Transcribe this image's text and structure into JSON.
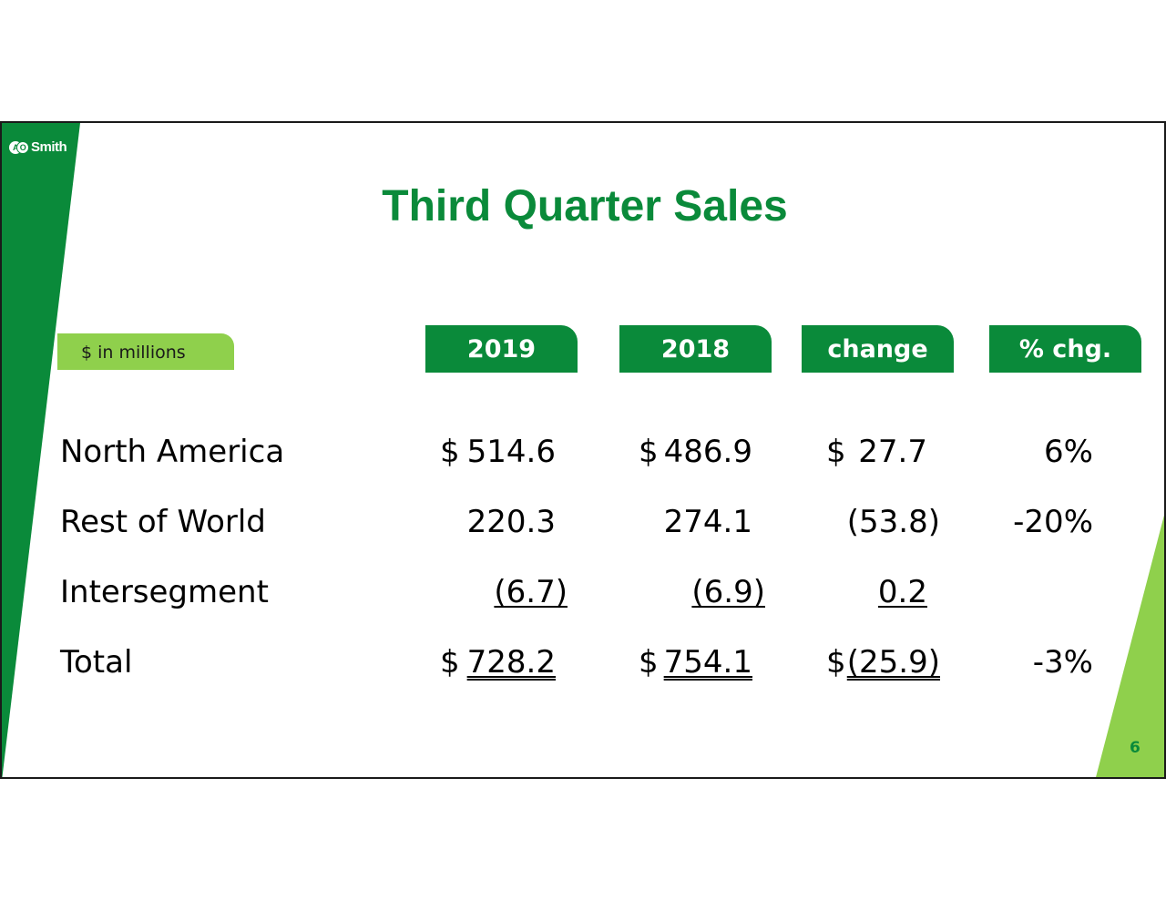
{
  "slide": {
    "logo_text": "Smith",
    "logo_mark": [
      "A",
      "O"
    ],
    "title": "Third Quarter Sales",
    "units_label": "$ in millions",
    "page_number": "6"
  },
  "columns": [
    "2019",
    "2018",
    "change",
    "% chg."
  ],
  "rows": [
    {
      "label": "North America",
      "cur_2019": "$",
      "v2019": "514.6",
      "cur_2018": "$",
      "v2018": "486.9",
      "cur_change": "$",
      "change": "27.7",
      "pct": "6%"
    },
    {
      "label": "Rest of World",
      "cur_2019": "",
      "v2019": "220.3",
      "cur_2018": "",
      "v2018": "274.1",
      "cur_change": "",
      "change": "(53.8)",
      "pct": "-20%"
    },
    {
      "label": "Intersegment",
      "cur_2019": "",
      "v2019": "(6.7)",
      "cur_2018": "",
      "v2018": "(6.9)",
      "cur_change": "",
      "change": "0.2",
      "pct": ""
    },
    {
      "label": "Total",
      "cur_2019": "$",
      "v2019": "728.2",
      "cur_2018": "$",
      "v2018": "754.1",
      "cur_change": "$",
      "change": "(25.9)",
      "pct": "-3%"
    }
  ],
  "colors": {
    "dark_green": "#0a8a3a",
    "light_green": "#8fd04c"
  }
}
